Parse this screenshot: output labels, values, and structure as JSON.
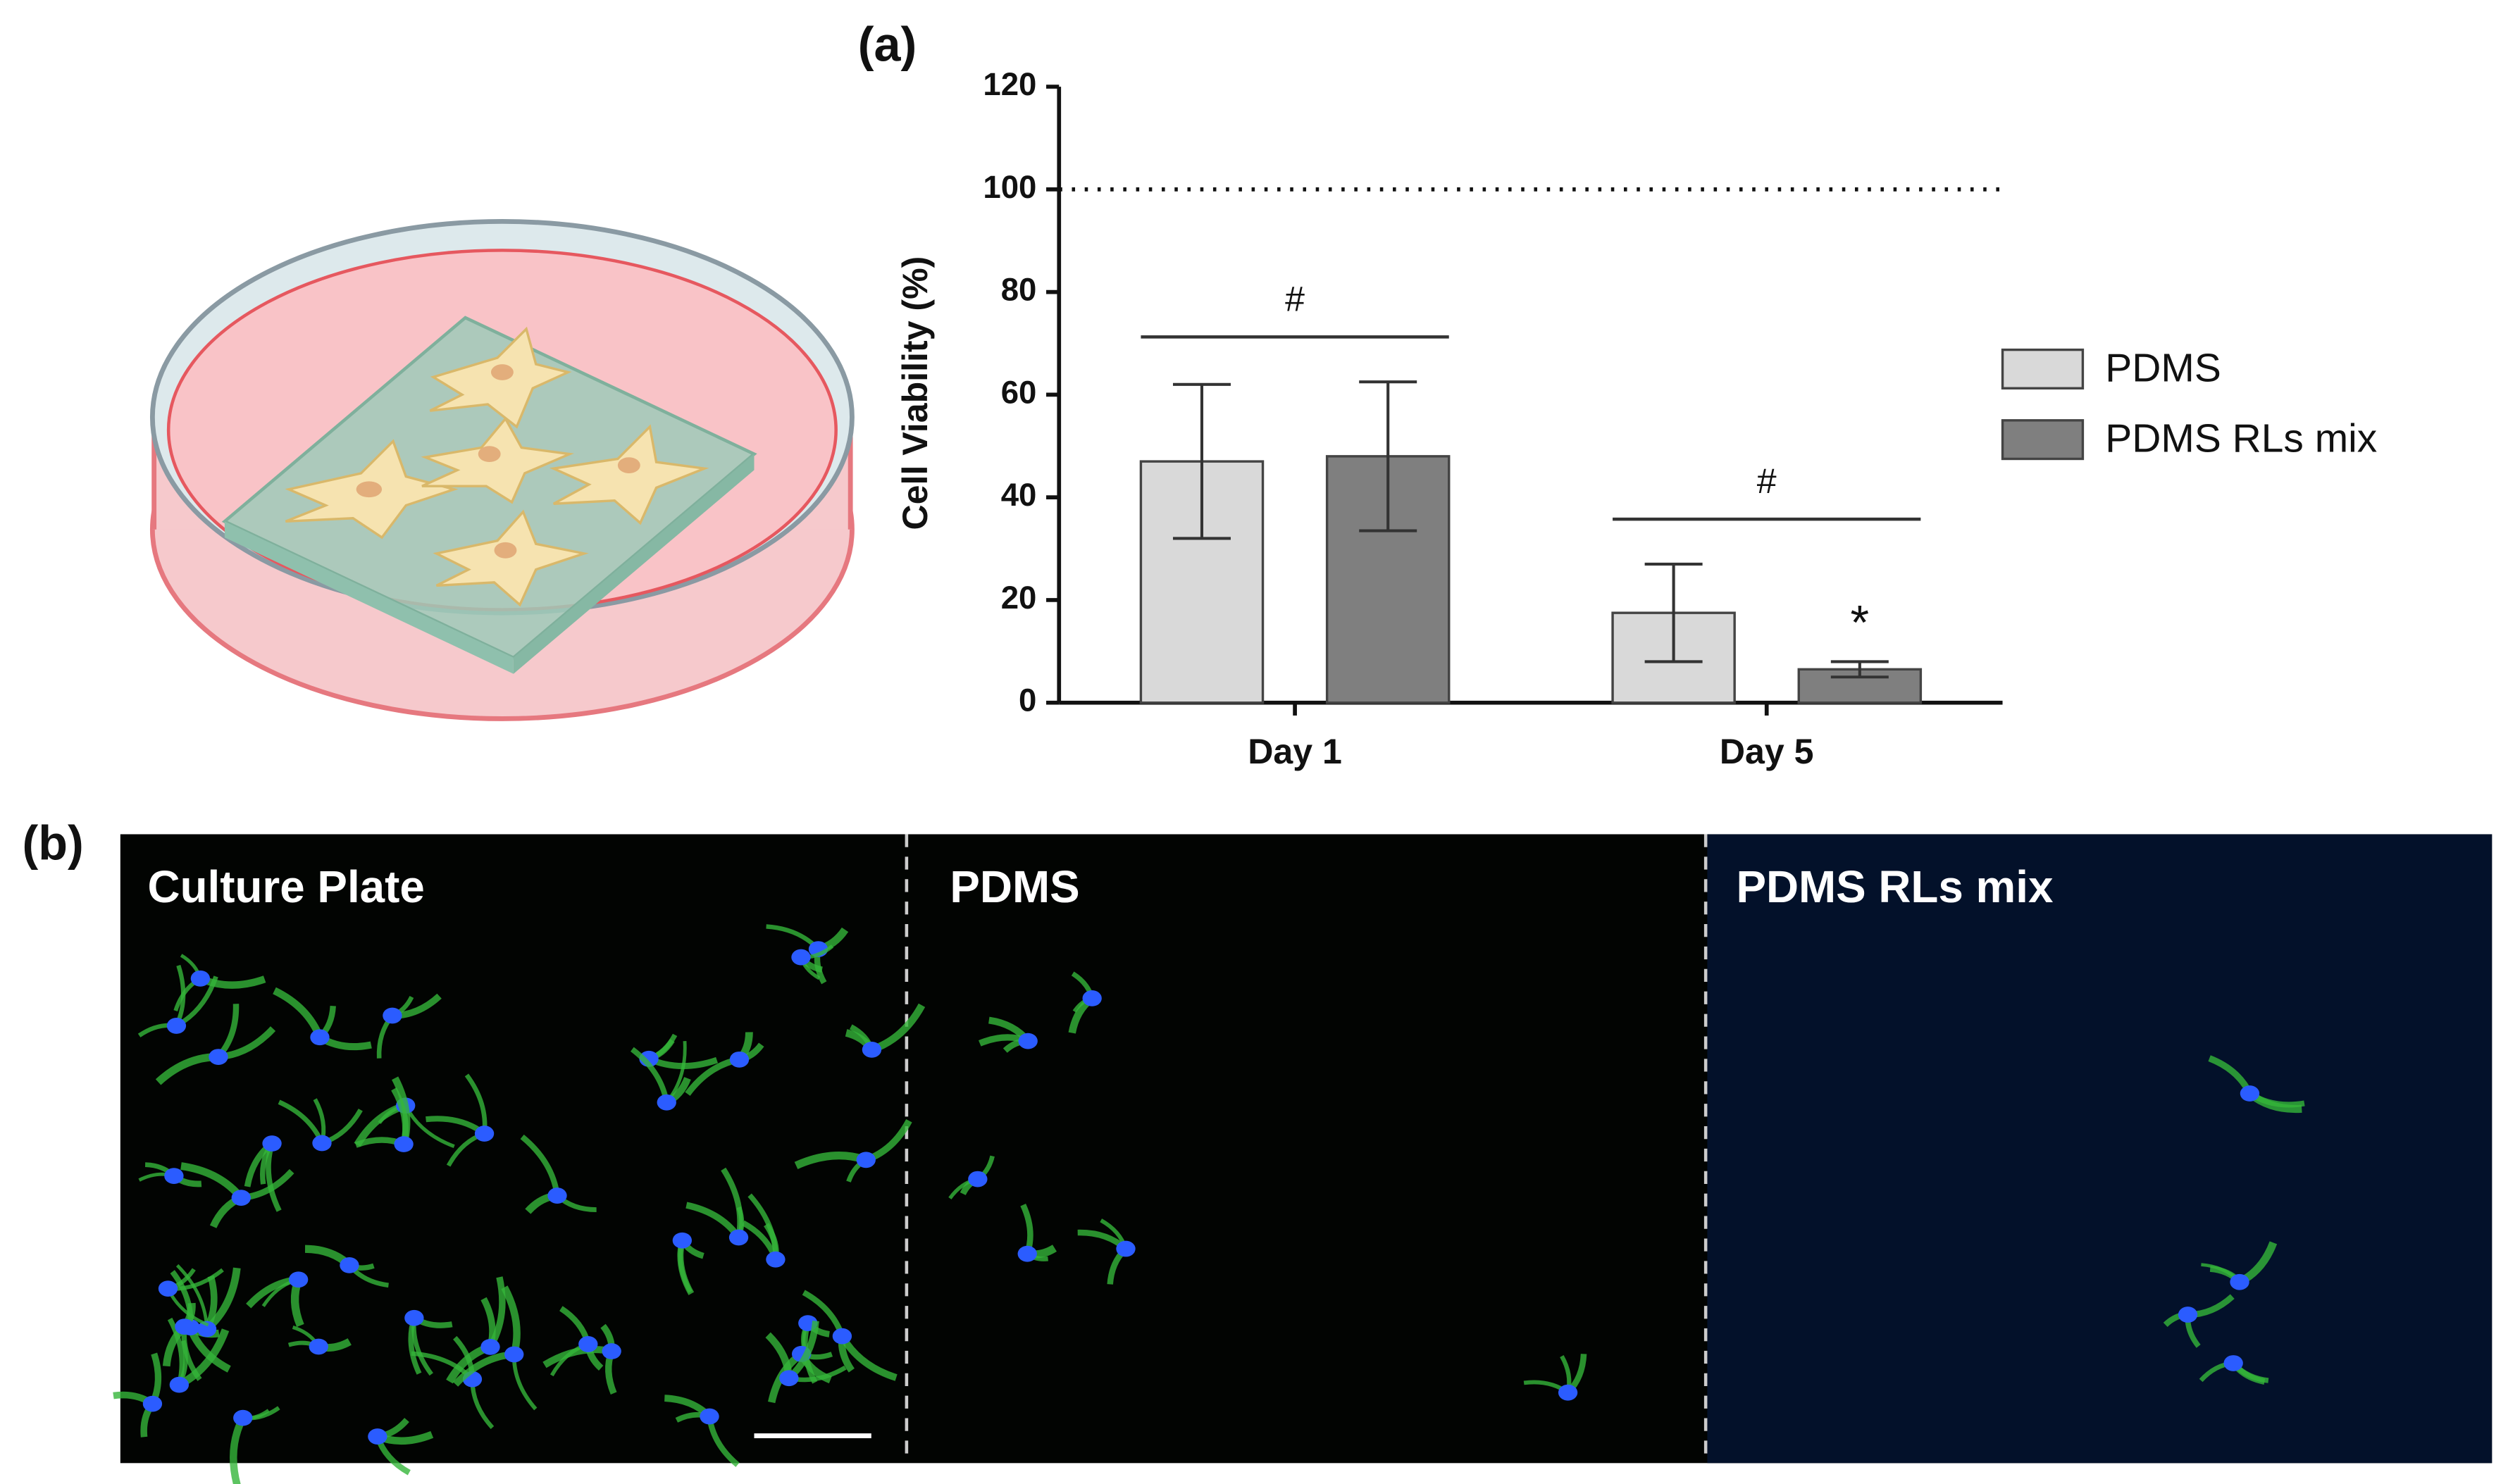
{
  "chart_data": {
    "type": "bar",
    "panel_label": "(a)",
    "y_label": "Cell Viability (%)",
    "categories": [
      "Day 1",
      "Day 5"
    ],
    "series": [
      {
        "name": "PDMS",
        "color": "#d9d9d9",
        "values": [
          47,
          17.5
        ],
        "errors": [
          15,
          9.5
        ]
      },
      {
        "name": "PDMS RLs mix",
        "color": "#7f7f7f",
        "values": [
          48,
          6.5
        ],
        "errors": [
          14.5,
          1.5
        ],
        "markers": [
          null,
          "*"
        ]
      }
    ],
    "group_annotations": [
      "#",
      "#"
    ],
    "reference_line": 100,
    "ylim": [
      0,
      120
    ],
    "yticks": [
      0,
      20,
      40,
      60,
      80,
      100,
      120
    ],
    "legend": "right"
  },
  "panel_b": {
    "label": "(b)",
    "images": [
      "Culture Plate",
      "PDMS",
      "PDMS RLs mix"
    ]
  }
}
